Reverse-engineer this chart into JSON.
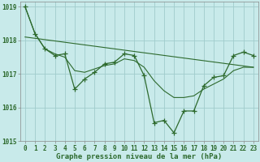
{
  "background_color": "#c8eaea",
  "grid_color": "#a0cccc",
  "line_color": "#2d6a2d",
  "hours": [
    0,
    1,
    2,
    3,
    4,
    5,
    6,
    7,
    8,
    9,
    10,
    11,
    12,
    13,
    14,
    15,
    16,
    17,
    18,
    19,
    20,
    21,
    22,
    23
  ],
  "pressure": [
    1019.0,
    1018.2,
    1017.75,
    1017.55,
    1017.6,
    1016.55,
    1016.85,
    1017.05,
    1017.3,
    1017.35,
    1017.6,
    1017.55,
    1016.95,
    1015.55,
    1015.62,
    1015.25,
    1015.9,
    1015.9,
    1016.65,
    1016.9,
    1016.95,
    1017.55,
    1017.65,
    1017.55
  ],
  "smooth": [
    1019.0,
    1018.2,
    1017.75,
    1017.6,
    1017.5,
    1017.1,
    1017.05,
    1017.15,
    1017.25,
    1017.3,
    1017.45,
    1017.4,
    1017.2,
    1016.8,
    1016.5,
    1016.3,
    1016.3,
    1016.35,
    1016.55,
    1016.7,
    1016.85,
    1017.1,
    1017.2,
    1017.2
  ],
  "trend_x": [
    0,
    23
  ],
  "trend_y": [
    1018.1,
    1017.2
  ],
  "ylim": [
    1015.0,
    1019.15
  ],
  "yticks": [
    1015,
    1016,
    1017,
    1018,
    1019
  ],
  "xticks": [
    0,
    1,
    2,
    3,
    4,
    5,
    6,
    7,
    8,
    9,
    10,
    11,
    12,
    13,
    14,
    15,
    16,
    17,
    18,
    19,
    20,
    21,
    22,
    23
  ],
  "xlabel": "Graphe pression niveau de la mer (hPa)",
  "tick_fontsize": 5.5,
  "label_fontsize": 6.5
}
